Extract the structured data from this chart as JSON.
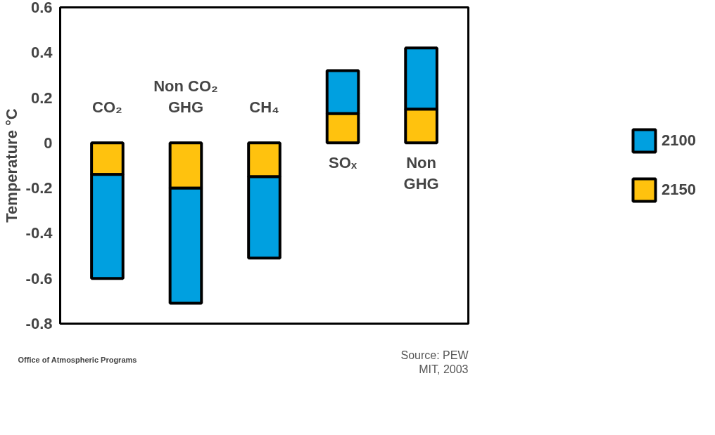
{
  "chart_data": {
    "type": "bar",
    "stacked": true,
    "categories": [
      "CO₂",
      "Non CO₂ GHG",
      "CH₄",
      "SOₓ",
      "Non GHG"
    ],
    "ylabel": "Temperature °C",
    "series": [
      {
        "name": "2150",
        "color": "#ffc20e",
        "values": [
          -0.14,
          -0.2,
          -0.15,
          0.13,
          0.15
        ]
      },
      {
        "name": "2100",
        "color": "#00a0e0",
        "values": [
          -0.46,
          -0.51,
          -0.36,
          0.19,
          0.27
        ]
      }
    ],
    "ylim": [
      -0.8,
      0.6
    ],
    "yticks": [
      -0.8,
      -0.6,
      -0.4,
      -0.2,
      0,
      0.2,
      0.4,
      0.6
    ],
    "tick_labels": "y",
    "grid": false,
    "legend": "right",
    "annotations": [
      "Office of Atmospheric Programs",
      "Source: PEW\nMIT, 2003"
    ]
  }
}
